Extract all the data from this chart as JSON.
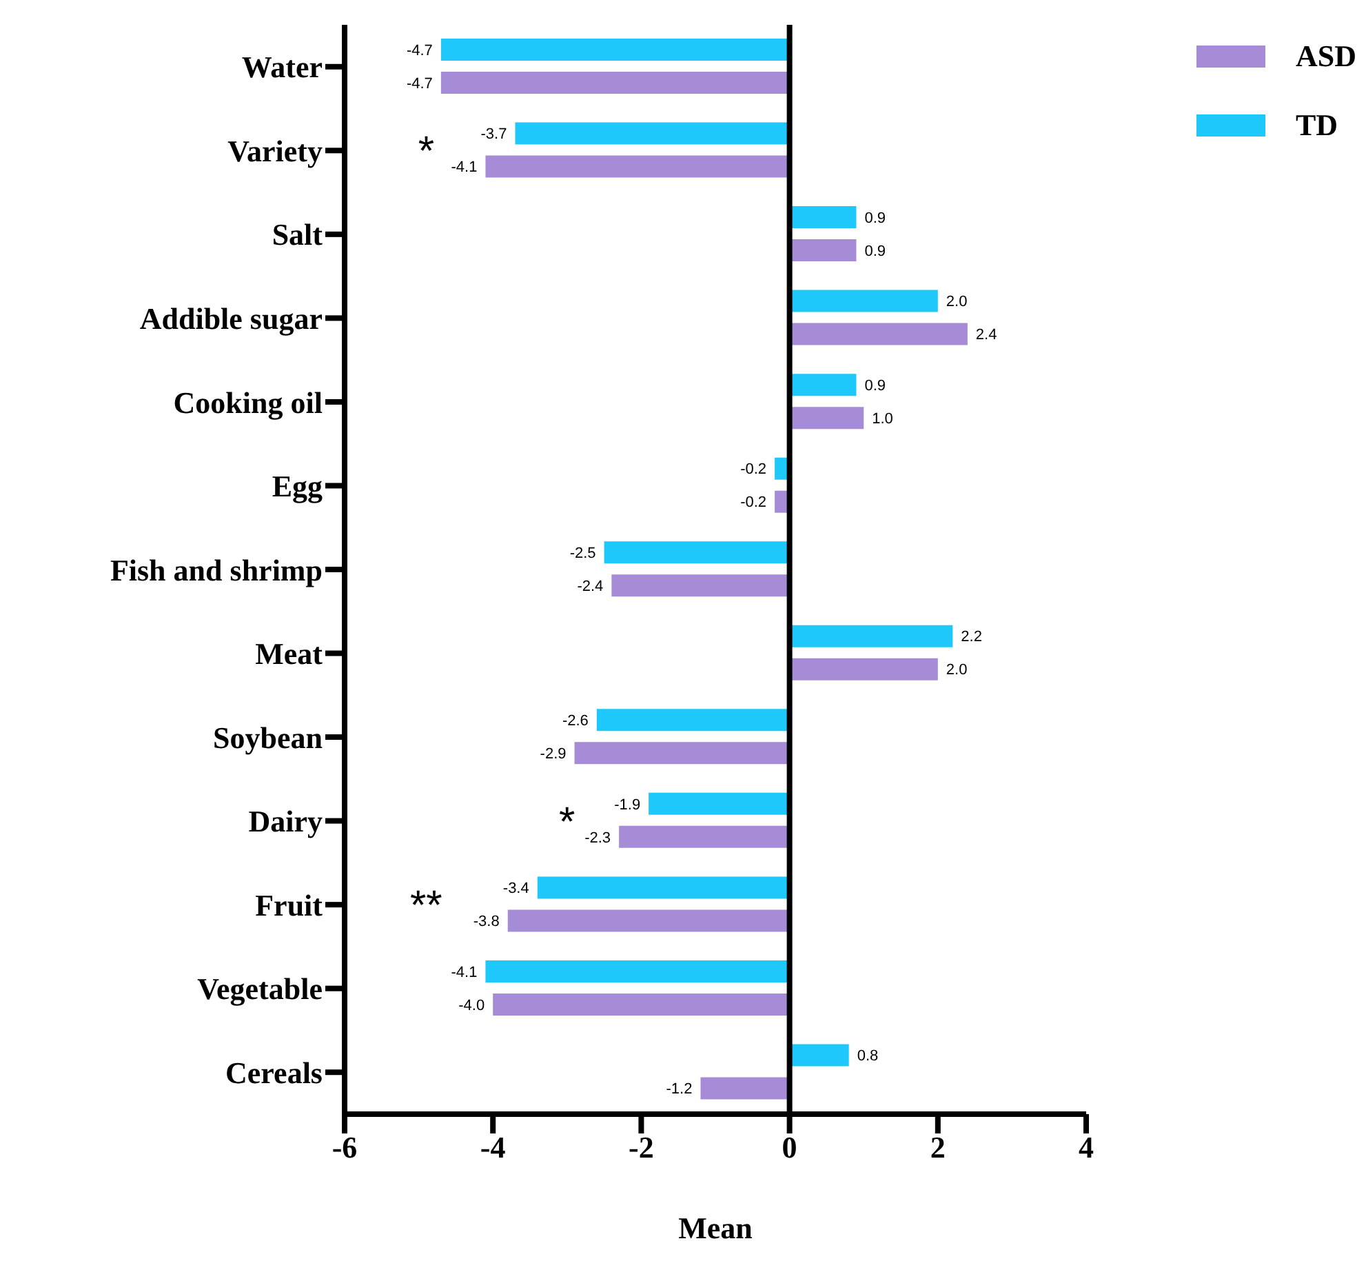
{
  "chart_data": {
    "type": "bar",
    "orientation": "horizontal",
    "xlabel": "Mean",
    "categories": [
      "Water",
      "Variety",
      "Salt",
      "Addible sugar",
      "Cooking oil",
      "Egg",
      "Fish and shrimp",
      "Meat",
      "Soybean",
      "Dairy",
      "Fruit",
      "Vegetable",
      "Cereals"
    ],
    "series": [
      {
        "name": "TD",
        "color": "#1ec8fa",
        "values": [
          -4.7,
          -3.7,
          0.9,
          2.0,
          0.9,
          -0.2,
          -2.5,
          2.2,
          -2.6,
          -1.9,
          -3.4,
          -4.1,
          0.8
        ],
        "value_labels": [
          "-4.7",
          "-3.7",
          "0.9",
          "2.0",
          "0.9",
          "-0.2",
          "-2.5",
          "2.2",
          "-2.6",
          "-1.9",
          "-3.4",
          "-4.1",
          "0.8"
        ]
      },
      {
        "name": "ASD",
        "color": "#a68bd6",
        "values": [
          -4.7,
          -4.1,
          0.9,
          2.4,
          1.0,
          -0.2,
          -2.4,
          2.0,
          -2.9,
          -2.3,
          -3.8,
          -4.0,
          -1.2
        ],
        "value_labels": [
          "-4.7",
          "-4.1",
          "0.9",
          "2.4",
          "1.0",
          "-0.2",
          "-2.4",
          "2.0",
          "-2.9",
          "-2.3",
          "-3.8",
          "-4.0",
          "-1.2"
        ]
      }
    ],
    "xlim": [
      -6,
      4
    ],
    "xticks": [
      -6,
      -4,
      -2,
      0,
      2,
      4
    ],
    "ref_lines": [
      {
        "axis": "x",
        "value": 0
      }
    ],
    "annotations": [
      "*",
      "*",
      "**"
    ],
    "grid": false,
    "legend": "top right"
  }
}
